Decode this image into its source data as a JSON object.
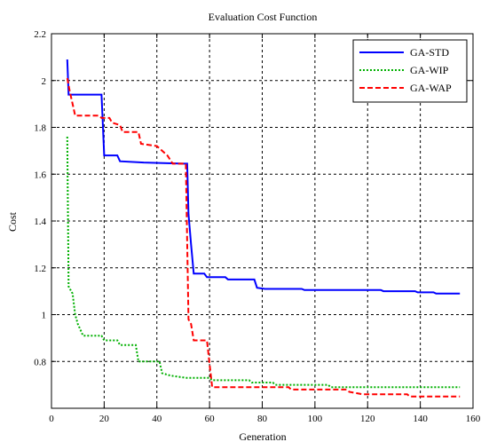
{
  "chart_data": {
    "type": "line",
    "title": "Evaluation Cost Function",
    "xlabel": "Generation",
    "ylabel": "Cost",
    "xlim": [
      0,
      160
    ],
    "ylim": [
      0.6,
      2.2
    ],
    "xticks": [
      0,
      20,
      40,
      60,
      80,
      100,
      120,
      140,
      160
    ],
    "xtick_labels": [
      "0",
      "20",
      "40",
      "60",
      "80",
      "100",
      "120",
      "140",
      "160"
    ],
    "yticks": [
      0.8,
      1.0,
      1.2,
      1.4,
      1.6,
      1.8,
      2.0,
      2.2
    ],
    "ytick_labels": [
      "0.8",
      "1",
      "1.2",
      "1.4",
      "1.6",
      "1.8",
      "2",
      "2.2"
    ],
    "grid": true,
    "legend_position": "top-right",
    "series": [
      {
        "name": "GA-STD",
        "color": "#0000ff",
        "style": "solid",
        "points": [
          [
            6,
            2.09
          ],
          [
            6.5,
            1.94
          ],
          [
            19,
            1.94
          ],
          [
            20,
            1.68
          ],
          [
            25,
            1.68
          ],
          [
            26,
            1.655
          ],
          [
            35,
            1.65
          ],
          [
            50,
            1.645
          ],
          [
            51.5,
            1.645
          ],
          [
            52,
            1.43
          ],
          [
            53,
            1.3
          ],
          [
            54,
            1.175
          ],
          [
            58,
            1.175
          ],
          [
            59,
            1.16
          ],
          [
            66,
            1.16
          ],
          [
            67,
            1.15
          ],
          [
            77,
            1.15
          ],
          [
            78,
            1.115
          ],
          [
            81,
            1.11
          ],
          [
            95,
            1.11
          ],
          [
            96,
            1.105
          ],
          [
            125,
            1.105
          ],
          [
            126,
            1.1
          ],
          [
            138,
            1.1
          ],
          [
            139,
            1.095
          ],
          [
            145,
            1.095
          ],
          [
            146,
            1.09
          ],
          [
            155,
            1.09
          ]
        ]
      },
      {
        "name": "GA-WIP",
        "color": "#00b000",
        "style": "dotted",
        "points": [
          [
            6,
            1.76
          ],
          [
            6.5,
            1.12
          ],
          [
            8,
            1.09
          ],
          [
            9,
            1.0
          ],
          [
            10,
            0.96
          ],
          [
            12,
            0.91
          ],
          [
            19,
            0.91
          ],
          [
            20,
            0.89
          ],
          [
            25,
            0.89
          ],
          [
            26,
            0.87
          ],
          [
            32,
            0.87
          ],
          [
            33,
            0.8
          ],
          [
            41,
            0.8
          ],
          [
            42,
            0.75
          ],
          [
            45,
            0.74
          ],
          [
            51,
            0.73
          ],
          [
            52,
            0.73
          ],
          [
            60,
            0.73
          ],
          [
            61,
            0.72
          ],
          [
            75,
            0.72
          ],
          [
            76,
            0.71
          ],
          [
            84,
            0.71
          ],
          [
            85,
            0.7
          ],
          [
            105,
            0.7
          ],
          [
            106,
            0.69
          ],
          [
            155,
            0.69
          ]
        ]
      },
      {
        "name": "GA-WAP",
        "color": "#ff0000",
        "style": "dashed",
        "points": [
          [
            6,
            2.01
          ],
          [
            7,
            1.95
          ],
          [
            8,
            1.9
          ],
          [
            9,
            1.85
          ],
          [
            18,
            1.85
          ],
          [
            19,
            1.84
          ],
          [
            22,
            1.84
          ],
          [
            23,
            1.82
          ],
          [
            26,
            1.81
          ],
          [
            27,
            1.78
          ],
          [
            33,
            1.78
          ],
          [
            34,
            1.73
          ],
          [
            40,
            1.72
          ],
          [
            42,
            1.7
          ],
          [
            44,
            1.68
          ],
          [
            46,
            1.645
          ],
          [
            51,
            1.645
          ],
          [
            52,
            0.98
          ],
          [
            53,
            0.96
          ],
          [
            54,
            0.89
          ],
          [
            59,
            0.89
          ],
          [
            60,
            0.79
          ],
          [
            61,
            0.69
          ],
          [
            90,
            0.69
          ],
          [
            91,
            0.68
          ],
          [
            112,
            0.68
          ],
          [
            113,
            0.67
          ],
          [
            118,
            0.66
          ],
          [
            135,
            0.66
          ],
          [
            136,
            0.65
          ],
          [
            155,
            0.65
          ]
        ]
      }
    ]
  }
}
